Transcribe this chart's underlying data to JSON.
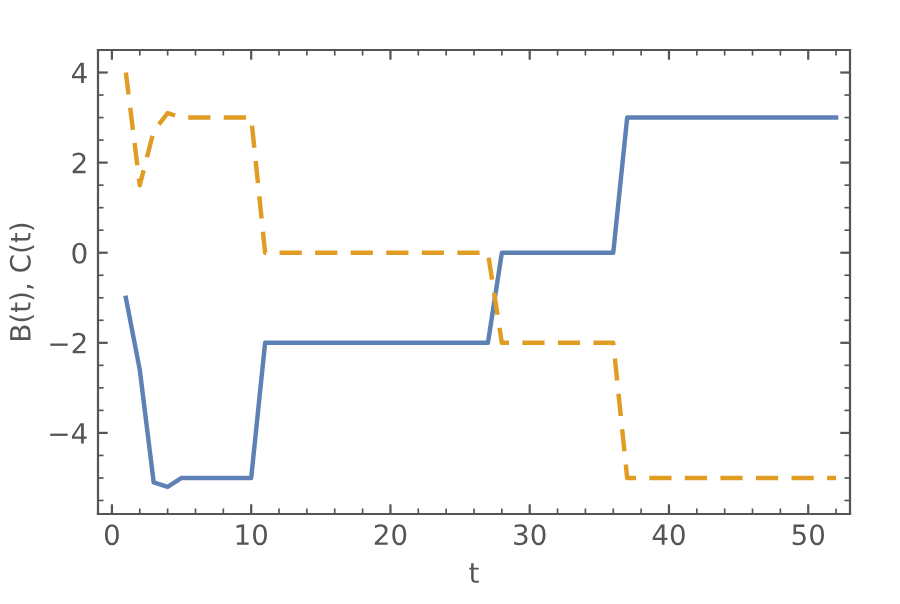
{
  "chart_data": {
    "type": "line",
    "xlabel": "t",
    "ylabel": "B(t), C(t)",
    "xlim": [
      -1,
      53
    ],
    "ylim": [
      -5.8,
      4.5
    ],
    "xticks": [
      0,
      10,
      20,
      30,
      40,
      50
    ],
    "yticks": [
      -4,
      -2,
      0,
      2,
      4
    ],
    "grid": false,
    "legend": false,
    "marker": "none",
    "series": [
      {
        "color": "#5e81b5",
        "line_style": "solid",
        "x": [
          1,
          2,
          3,
          4,
          5,
          10,
          11,
          27,
          28,
          36,
          37,
          52
        ],
        "values": [
          -1,
          -2.6,
          -5.1,
          -5.2,
          -5,
          -5,
          -2,
          -2,
          0,
          0,
          3,
          3
        ]
      },
      {
        "color": "#e19c24",
        "line_style": "dashed",
        "x": [
          1,
          2,
          3,
          4,
          5,
          10,
          11,
          27,
          28,
          36,
          37,
          52
        ],
        "values": [
          4,
          1.5,
          2.7,
          3.1,
          3,
          3,
          0,
          0,
          -2,
          -2,
          -5,
          -5
        ]
      }
    ]
  }
}
